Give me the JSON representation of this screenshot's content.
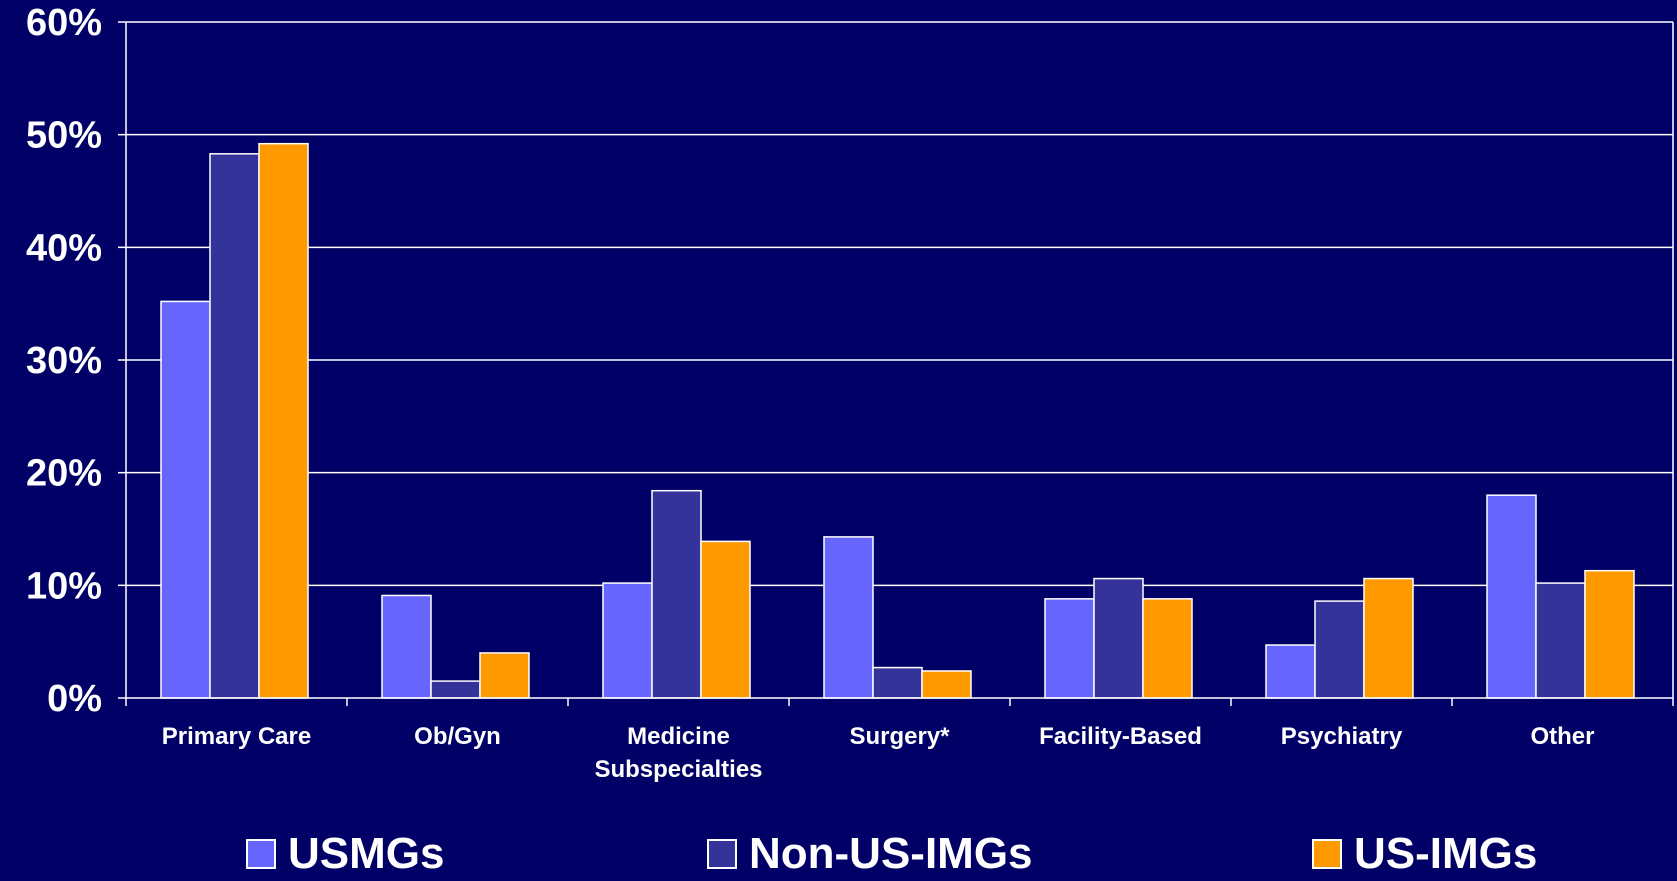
{
  "chart_data": {
    "type": "bar",
    "title": "",
    "xlabel": "",
    "ylabel": "",
    "ylim": [
      0,
      60
    ],
    "y_ticks": [
      "0%",
      "10%",
      "20%",
      "30%",
      "40%",
      "50%",
      "60%"
    ],
    "y_tick_values": [
      0,
      10,
      20,
      30,
      40,
      50,
      60
    ],
    "grid": true,
    "legend_position": "bottom",
    "categories": [
      [
        "Primary Care"
      ],
      [
        "Ob/Gyn"
      ],
      [
        "Medicine",
        "Subspecialties"
      ],
      [
        "Surgery*"
      ],
      [
        "Facility-Based"
      ],
      [
        "Psychiatry"
      ],
      [
        "Other"
      ]
    ],
    "series": [
      {
        "name": "USMGs",
        "color": "#6666ff",
        "values": [
          35.2,
          9.1,
          10.2,
          14.3,
          8.8,
          4.7,
          18.0
        ]
      },
      {
        "name": "Non-US-IMGs",
        "color": "#333399",
        "values": [
          48.3,
          1.5,
          18.4,
          2.7,
          10.6,
          8.6,
          10.2
        ]
      },
      {
        "name": "US-IMGs",
        "color": "#ff9900",
        "values": [
          49.2,
          4.0,
          13.9,
          2.4,
          8.8,
          10.6,
          11.3
        ]
      }
    ]
  },
  "colors": {
    "background": "#000066",
    "text": "#ffffff",
    "grid": "#ffffff",
    "bar_border": "#ffffff"
  }
}
